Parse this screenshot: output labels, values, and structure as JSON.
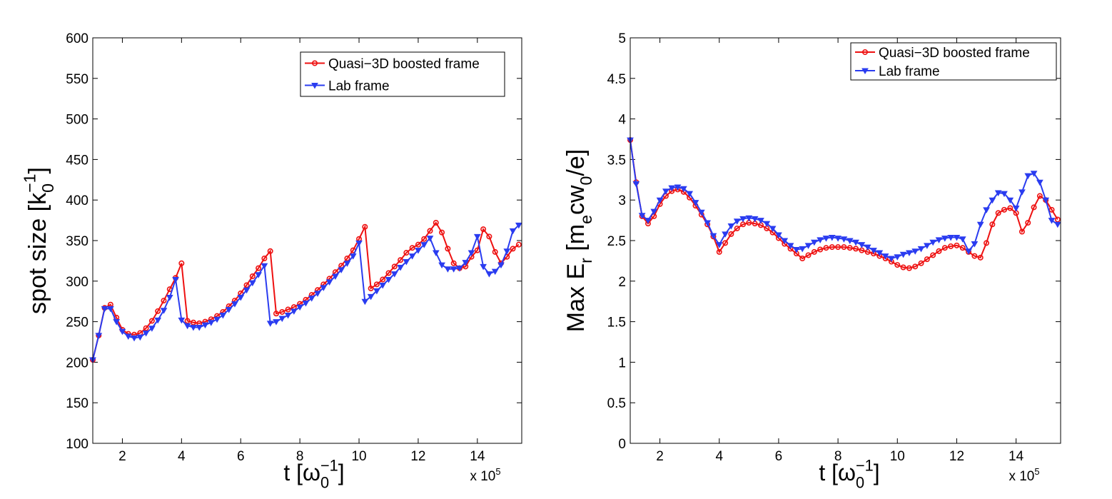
{
  "chart_data": [
    {
      "type": "line",
      "xlabel": [
        "t [ω",
        "0",
        "−1",
        "]"
      ],
      "ylabel": [
        "spot size [k",
        "0",
        "−1",
        "]"
      ],
      "x_multiplier": [
        "x 10",
        "5"
      ],
      "xlim": [
        1,
        15.5
      ],
      "xticks": [
        2,
        4,
        6,
        8,
        10,
        12,
        14
      ],
      "ylim": [
        100,
        600
      ],
      "yticks": [
        100,
        150,
        200,
        250,
        300,
        350,
        400,
        450,
        500,
        550,
        600
      ],
      "legend": "upper right",
      "x": [
        1,
        1.2,
        1.4,
        1.6,
        1.8,
        2,
        2.2,
        2.4,
        2.6,
        2.8,
        3,
        3.2,
        3.4,
        3.6,
        3.8,
        4,
        4.2,
        4.4,
        4.6,
        4.8,
        5,
        5.2,
        5.4,
        5.6,
        5.8,
        6,
        6.2,
        6.4,
        6.6,
        6.8,
        7,
        7.2,
        7.4,
        7.6,
        7.8,
        8,
        8.2,
        8.4,
        8.6,
        8.8,
        9,
        9.2,
        9.4,
        9.6,
        9.8,
        10,
        10.2,
        10.4,
        10.6,
        10.8,
        11,
        11.2,
        11.4,
        11.6,
        11.8,
        12,
        12.2,
        12.4,
        12.6,
        12.8,
        13,
        13.2,
        13.4,
        13.6,
        13.8,
        14,
        14.2,
        14.4,
        14.6,
        14.8,
        15,
        15.2,
        15.4
      ],
      "series": [
        {
          "name": "Quasi−3D boosted frame",
          "color": "#ee1111",
          "marker": "circle",
          "values": [
            203,
            233,
            267,
            271,
            255,
            240,
            235,
            234,
            236,
            242,
            251,
            263,
            276,
            290,
            304,
            322,
            251,
            249,
            248,
            250,
            253,
            257,
            262,
            269,
            276,
            285,
            295,
            306,
            316,
            328,
            337,
            260,
            262,
            265,
            268,
            272,
            277,
            283,
            289,
            296,
            303,
            311,
            319,
            328,
            338,
            352,
            367,
            291,
            296,
            302,
            310,
            318,
            326,
            335,
            341,
            345,
            352,
            362,
            372,
            360,
            340,
            322,
            316,
            318,
            330,
            338,
            364,
            355,
            336,
            322,
            330,
            340,
            345
          ]
        },
        {
          "name": "Lab frame",
          "color": "#2a3cf0",
          "marker": "triangle-down",
          "values": [
            203,
            233,
            266,
            266,
            250,
            238,
            232,
            230,
            231,
            236,
            242,
            252,
            264,
            280,
            302,
            252,
            245,
            243,
            243,
            246,
            249,
            253,
            258,
            265,
            272,
            280,
            289,
            298,
            308,
            319,
            248,
            250,
            254,
            258,
            263,
            268,
            273,
            279,
            285,
            292,
            299,
            306,
            314,
            322,
            331,
            347,
            275,
            281,
            288,
            295,
            302,
            309,
            317,
            324,
            331,
            338,
            345,
            353,
            335,
            320,
            315,
            315,
            316,
            323,
            335,
            355,
            318,
            309,
            312,
            320,
            337,
            362,
            369
          ]
        }
      ]
    },
    {
      "type": "line",
      "xlabel": [
        "t [ω",
        "0",
        "−1",
        "]"
      ],
      "ylabel": [
        "Max E",
        "r",
        " [m",
        "e",
        "cw",
        "0",
        "/e]"
      ],
      "x_multiplier": [
        "x 10",
        "5"
      ],
      "xlim": [
        1,
        15.5
      ],
      "xticks": [
        2,
        4,
        6,
        8,
        10,
        12,
        14
      ],
      "ylim": [
        0,
        5
      ],
      "yticks": [
        0,
        0.5,
        1,
        1.5,
        2,
        2.5,
        3,
        3.5,
        4,
        4.5,
        5
      ],
      "legend": "upper right",
      "x": [
        1,
        1.2,
        1.4,
        1.6,
        1.8,
        2,
        2.2,
        2.4,
        2.6,
        2.8,
        3,
        3.2,
        3.4,
        3.6,
        3.8,
        4,
        4.2,
        4.4,
        4.6,
        4.8,
        5,
        5.2,
        5.4,
        5.6,
        5.8,
        6,
        6.2,
        6.4,
        6.6,
        6.8,
        7,
        7.2,
        7.4,
        7.6,
        7.8,
        8,
        8.2,
        8.4,
        8.6,
        8.8,
        9,
        9.2,
        9.4,
        9.6,
        9.8,
        10,
        10.2,
        10.4,
        10.6,
        10.8,
        11,
        11.2,
        11.4,
        11.6,
        11.8,
        12,
        12.2,
        12.4,
        12.6,
        12.8,
        13,
        13.2,
        13.4,
        13.6,
        13.8,
        14,
        14.2,
        14.4,
        14.6,
        14.8,
        15,
        15.2,
        15.4
      ],
      "series": [
        {
          "name": "Quasi−3D boosted frame",
          "color": "#ee1111",
          "marker": "circle",
          "values": [
            3.74,
            3.22,
            2.8,
            2.71,
            2.8,
            2.95,
            3.05,
            3.11,
            3.13,
            3.1,
            3.03,
            2.93,
            2.82,
            2.7,
            2.55,
            2.36,
            2.47,
            2.58,
            2.65,
            2.7,
            2.72,
            2.71,
            2.69,
            2.65,
            2.6,
            2.53,
            2.46,
            2.4,
            2.34,
            2.28,
            2.32,
            2.36,
            2.39,
            2.41,
            2.42,
            2.42,
            2.42,
            2.41,
            2.4,
            2.38,
            2.36,
            2.34,
            2.31,
            2.28,
            2.24,
            2.2,
            2.17,
            2.16,
            2.18,
            2.22,
            2.27,
            2.32,
            2.37,
            2.41,
            2.43,
            2.44,
            2.41,
            2.36,
            2.31,
            2.29,
            2.47,
            2.7,
            2.84,
            2.88,
            2.9,
            2.84,
            2.61,
            2.72,
            2.91,
            3.05,
            3.0,
            2.88,
            2.76
          ]
        },
        {
          "name": "Lab frame",
          "color": "#2a3cf0",
          "marker": "triangle-down",
          "values": [
            3.74,
            3.2,
            2.81,
            2.75,
            2.86,
            3.0,
            3.11,
            3.15,
            3.16,
            3.14,
            3.08,
            2.97,
            2.85,
            2.72,
            2.56,
            2.45,
            2.58,
            2.68,
            2.74,
            2.77,
            2.78,
            2.77,
            2.75,
            2.71,
            2.65,
            2.57,
            2.5,
            2.44,
            2.39,
            2.4,
            2.44,
            2.48,
            2.51,
            2.53,
            2.54,
            2.53,
            2.52,
            2.5,
            2.48,
            2.45,
            2.42,
            2.38,
            2.35,
            2.31,
            2.28,
            2.3,
            2.33,
            2.35,
            2.37,
            2.4,
            2.44,
            2.48,
            2.51,
            2.53,
            2.54,
            2.54,
            2.52,
            2.37,
            2.46,
            2.7,
            2.88,
            3.0,
            3.09,
            3.08,
            3.0,
            2.9,
            3.1,
            3.3,
            3.33,
            3.22,
            3.0,
            2.75,
            2.7
          ]
        }
      ]
    }
  ]
}
